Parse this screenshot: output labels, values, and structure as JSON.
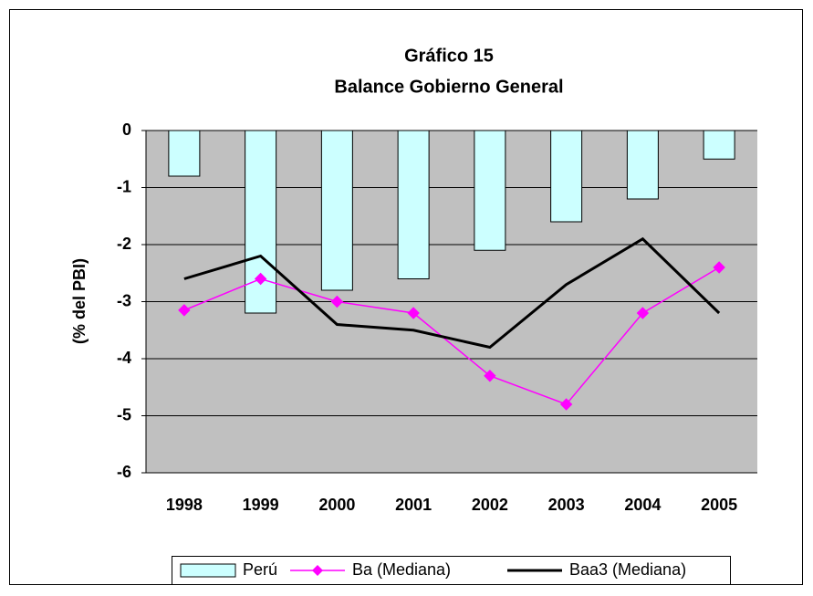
{
  "chart_data": {
    "type": "combo",
    "title": "Gráfico 15",
    "subtitle": "Balance Gobierno General",
    "y_label": "(% del PBI)",
    "categories": [
      "1998",
      "1999",
      "2000",
      "2001",
      "2002",
      "2003",
      "2004",
      "2005"
    ],
    "series": [
      {
        "name": "Perú",
        "type": "bar",
        "color": "#ccffff",
        "values": [
          -0.8,
          -3.2,
          -2.8,
          -2.6,
          -2.1,
          -1.6,
          -1.2,
          -0.5
        ]
      },
      {
        "name": "Ba (Mediana)",
        "type": "line",
        "marker": "diamond",
        "color": "#ff00ff",
        "values": [
          -3.15,
          -2.6,
          -3.0,
          -3.2,
          -4.3,
          -4.8,
          -3.2,
          -2.4
        ]
      },
      {
        "name": "Baa3 (Mediana)",
        "type": "line",
        "color": "#000000",
        "values": [
          -2.6,
          -2.2,
          -3.4,
          -3.5,
          -3.8,
          -2.7,
          -1.9,
          -3.2
        ]
      }
    ],
    "ylim": [
      -6,
      0
    ],
    "yticks": [
      0,
      -1,
      -2,
      -3,
      -4,
      -5,
      -6
    ],
    "grid": true,
    "legend": "bottom",
    "plot_background": "#c0c0c0"
  }
}
